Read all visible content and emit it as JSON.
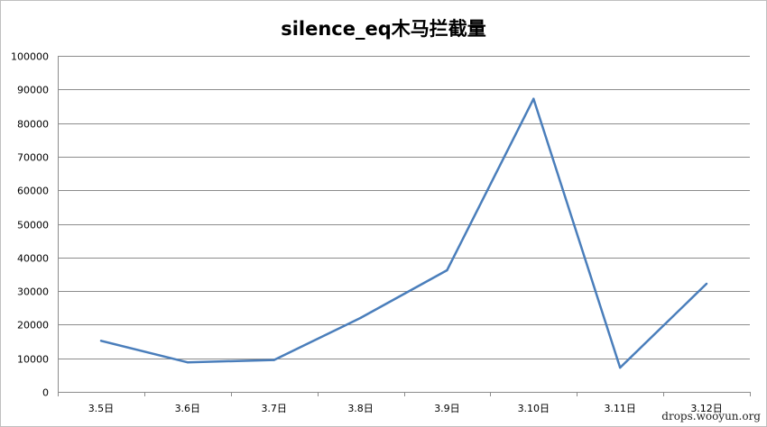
{
  "chart_data": {
    "type": "line",
    "title": "silence_eq木马拦截量",
    "xlabel": "",
    "ylabel": "",
    "categories": [
      "3.5日",
      "3.6日",
      "3.7日",
      "3.8日",
      "3.9日",
      "3.10日",
      "3.11日",
      "3.12日"
    ],
    "series": [
      {
        "values": [
          15200,
          8800,
          9500,
          22000,
          36200,
          87200,
          7200,
          32200
        ],
        "color": "#4a7ebb"
      }
    ],
    "ylim": [
      0,
      100000
    ],
    "yticks": [
      0,
      10000,
      20000,
      30000,
      40000,
      50000,
      60000,
      70000,
      80000,
      90000,
      100000
    ],
    "grid": true,
    "legend": "none"
  },
  "watermark": "drops.wooyun.org"
}
